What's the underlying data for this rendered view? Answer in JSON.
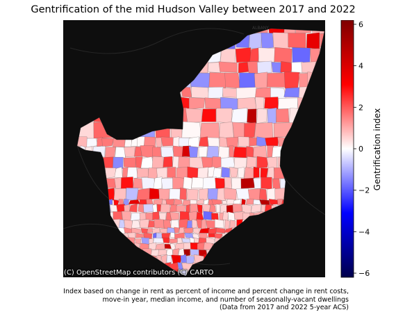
{
  "title": "Gentrification of the mid Hudson Valley between 2017 and 2022",
  "map": {
    "basemap_labels": [
      "ALBANY"
    ],
    "attribution": "(C) OpenStreetMap contributors (C) CARTO",
    "basemap_color": "#0e0e0e"
  },
  "colorbar": {
    "label": "Gentrification index",
    "ticks": [
      "6",
      "4",
      "2",
      "0",
      "−2",
      "−4",
      "−6"
    ],
    "range": [
      -6.2,
      6.2
    ],
    "colormap": "seismic",
    "colors": [
      "#00004c",
      "#0000ff",
      "#ffffff",
      "#ff0000",
      "#7f0000"
    ]
  },
  "caption": [
    "Index based on change in rent as percent of income and percent change in rent costs,",
    "move-in year, median income, and number of seasonally-vacant dwellings",
    "(Data from 2017 and 2022 5-year ACS)"
  ]
}
